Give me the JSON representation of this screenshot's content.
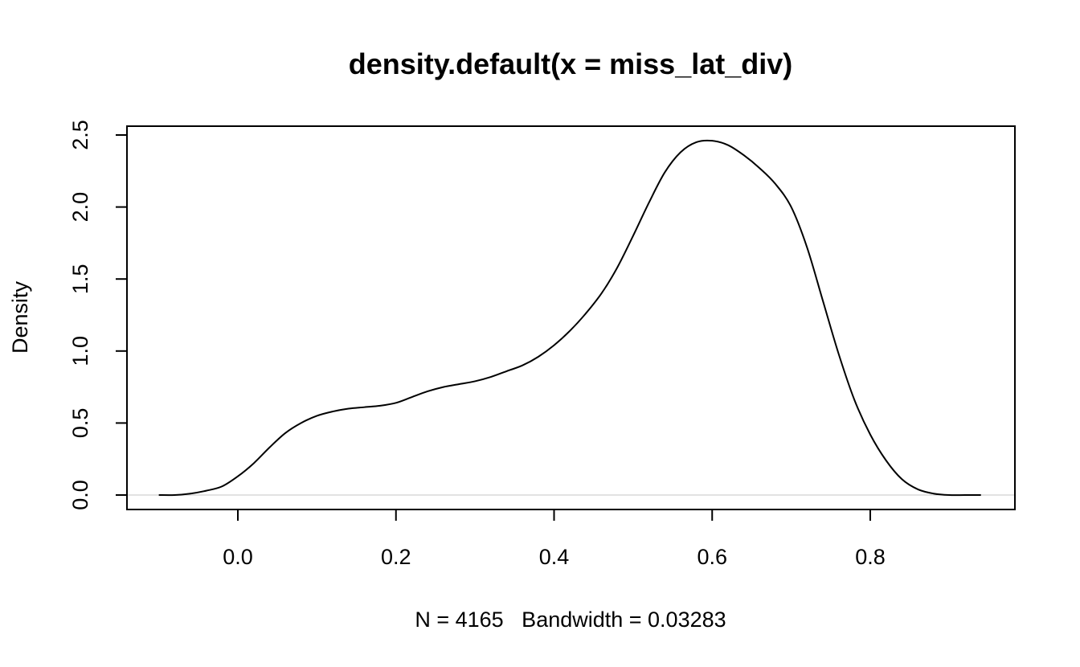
{
  "chart_data": {
    "type": "line",
    "title": "density.default(x = miss_lat_div)",
    "xlabel": "",
    "ylabel": "Density",
    "subtitle": "N = 4165   Bandwidth = 0.03283",
    "xlim": [
      -0.1,
      0.94
    ],
    "ylim": [
      0.0,
      2.5
    ],
    "x_ticks": [
      0.0,
      0.2,
      0.4,
      0.6,
      0.8
    ],
    "x_tick_labels": [
      "0.0",
      "0.2",
      "0.4",
      "0.6",
      "0.8"
    ],
    "y_ticks": [
      0.0,
      0.5,
      1.0,
      1.5,
      2.0,
      2.5
    ],
    "y_tick_labels": [
      "0.0",
      "0.5",
      "1.0",
      "1.5",
      "2.0",
      "2.5"
    ],
    "grid": false,
    "baseline": 0.0,
    "colors": {
      "line": "#000000",
      "baseline": "#d9d9d9",
      "frame": "#000000"
    },
    "series": [
      {
        "x": [
          -0.1,
          -0.08,
          -0.06,
          -0.04,
          -0.02,
          0.0,
          0.02,
          0.04,
          0.06,
          0.08,
          0.1,
          0.12,
          0.14,
          0.16,
          0.18,
          0.2,
          0.22,
          0.24,
          0.26,
          0.28,
          0.3,
          0.32,
          0.34,
          0.36,
          0.38,
          0.4,
          0.42,
          0.44,
          0.46,
          0.48,
          0.5,
          0.52,
          0.54,
          0.56,
          0.58,
          0.6,
          0.62,
          0.64,
          0.66,
          0.68,
          0.7,
          0.72,
          0.74,
          0.76,
          0.78,
          0.8,
          0.82,
          0.84,
          0.86,
          0.88,
          0.9,
          0.92,
          0.94
        ],
        "values": [
          0.0,
          0.0,
          0.01,
          0.03,
          0.06,
          0.13,
          0.22,
          0.33,
          0.43,
          0.5,
          0.55,
          0.58,
          0.6,
          0.61,
          0.62,
          0.64,
          0.68,
          0.72,
          0.75,
          0.77,
          0.79,
          0.82,
          0.86,
          0.9,
          0.96,
          1.04,
          1.14,
          1.26,
          1.4,
          1.58,
          1.8,
          2.03,
          2.24,
          2.38,
          2.45,
          2.46,
          2.43,
          2.36,
          2.27,
          2.16,
          2.0,
          1.72,
          1.35,
          0.98,
          0.66,
          0.42,
          0.24,
          0.11,
          0.04,
          0.01,
          0.0,
          0.0,
          0.0
        ]
      }
    ]
  }
}
